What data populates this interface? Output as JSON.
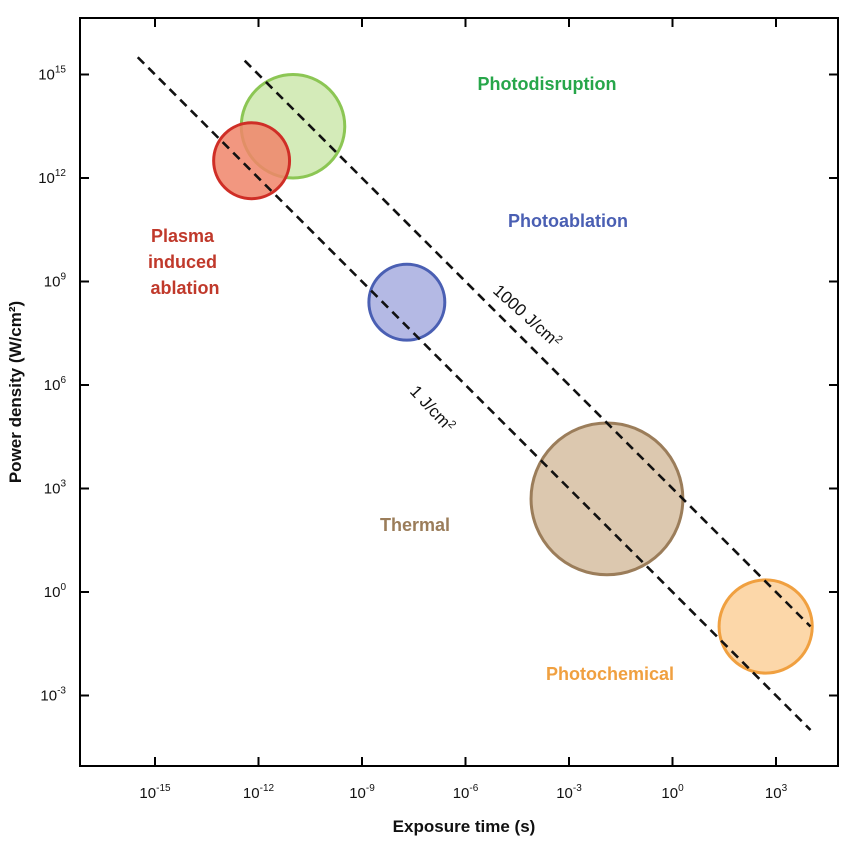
{
  "chart_data": {
    "type": "scatter",
    "xlabel": "Exposure time (s)",
    "ylabel": "Power density (W/cm²)",
    "x_scale": "log",
    "y_scale": "log",
    "x_ticks": [
      {
        "base": "10",
        "exp": "-15",
        "value": -15
      },
      {
        "base": "10",
        "exp": "-12",
        "value": -12
      },
      {
        "base": "10",
        "exp": "-9",
        "value": -9
      },
      {
        "base": "10",
        "exp": "-6",
        "value": -6
      },
      {
        "base": "10",
        "exp": "-3",
        "value": -3
      },
      {
        "base": "10",
        "exp": "0",
        "value": 0
      },
      {
        "base": "10",
        "exp": "3",
        "value": 3
      }
    ],
    "y_ticks": [
      {
        "base": "10",
        "exp": "-3",
        "value": -3
      },
      {
        "base": "10",
        "exp": "0",
        "value": 0
      },
      {
        "base": "10",
        "exp": "3",
        "value": 3
      },
      {
        "base": "10",
        "exp": "6",
        "value": 6
      },
      {
        "base": "10",
        "exp": "9",
        "value": 9
      },
      {
        "base": "10",
        "exp": "12",
        "value": 12
      },
      {
        "base": "10",
        "exp": "15",
        "value": 15
      }
    ],
    "regions": [
      {
        "label": "Photodisruption",
        "x_log": -11,
        "y_log": 13.5,
        "size": 3.0,
        "fill": "#cde8ad",
        "stroke": "#8cc654",
        "text_color": "#27a64a"
      },
      {
        "label": "Plasma induced ablation",
        "x_log": -12.2,
        "y_log": 12.5,
        "size": 2.2,
        "fill": "#f0856a",
        "stroke": "#cf2e26",
        "text_color": "#c0392b"
      },
      {
        "label": "Photoablation",
        "x_log": -7.7,
        "y_log": 8.4,
        "size": 2.2,
        "fill": "#a7addf",
        "stroke": "#4a5fb3",
        "text_color": "#4a5fb3"
      },
      {
        "label": "Thermal",
        "x_log": -1.9,
        "y_log": 2.7,
        "size": 4.4,
        "fill": "#d6bea1",
        "stroke": "#9b7d5a",
        "text_color": "#9b7d5a"
      },
      {
        "label": "Photochemical",
        "x_log": 2.7,
        "y_log": -1.0,
        "size": 2.7,
        "fill": "#fbd09a",
        "stroke": "#f0a040",
        "text_color": "#f0a040"
      }
    ],
    "reference_lines": [
      {
        "label_main": "1 J/cm",
        "label_sup": "2",
        "fluence_J_per_cm2": 1
      },
      {
        "label_main": "1000 J/cm",
        "label_sup": "2",
        "fluence_J_per_cm2": 1000
      }
    ]
  }
}
